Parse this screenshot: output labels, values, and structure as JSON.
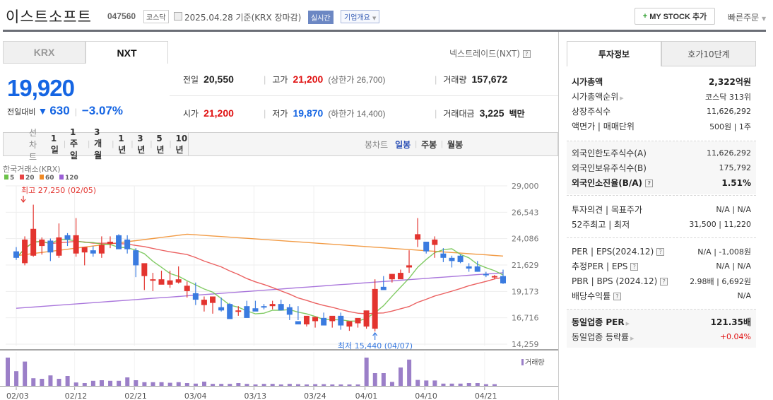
{
  "header": {
    "title": "이스트소프트",
    "code": "047560",
    "market": "코스닥",
    "date_text": "2025.04.28 기준(KRX 장마감)",
    "realtime_label": "실시간",
    "company_label": "기업개요",
    "mystock_label": "MY STOCK 추가",
    "quick_order_label": "빠른주문"
  },
  "exchange_tabs": [
    {
      "label": "KRX",
      "active": false
    },
    {
      "label": "NXT",
      "active": true
    }
  ],
  "nxt_label": "넥스트레이드(NXT)",
  "price": {
    "current": "19,920",
    "change_label": "전일대비",
    "change": "630",
    "change_pct": "−3.07%",
    "color": "#1565e3"
  },
  "stats": {
    "prev_close": {
      "label": "전일",
      "value": "20,550"
    },
    "high": {
      "label": "고가",
      "value": "21,200",
      "sub": "(상한가 26,700)"
    },
    "volume": {
      "label": "거래량",
      "value": "157,672"
    },
    "open": {
      "label": "시가",
      "value": "21,200"
    },
    "low": {
      "label": "저가",
      "value": "19,870",
      "sub": "(하한가 14,400)"
    },
    "amount": {
      "label": "거래대금",
      "value": "3,225",
      "unit": "백만"
    }
  },
  "chart_tabs": {
    "line_label": "선차트",
    "line": [
      "1일",
      "1주일",
      "3개월",
      "1년",
      "3년",
      "5년",
      "10년"
    ],
    "candle_label": "봉차트",
    "candle": [
      "일봉",
      "주봉",
      "월봉"
    ],
    "candle_active": "일봉"
  },
  "chart_data": {
    "type": "candlestick",
    "title": "한국거래소(KRX)",
    "legend": [
      {
        "label": "5",
        "color": "#6cc24a"
      },
      {
        "label": "20",
        "color": "#e84545"
      },
      {
        "label": "60",
        "color": "#f08a24"
      },
      {
        "label": "120",
        "color": "#9b5fd6"
      }
    ],
    "y_ticks": [
      "29,000",
      "26,543",
      "24,086",
      "21,629",
      "19,173",
      "16,716",
      "14,259"
    ],
    "ylim": [
      14259,
      29000
    ],
    "x_ticks": [
      "02/03",
      "02/12",
      "02/21",
      "03/04",
      "03/13",
      "03/24",
      "04/01",
      "04/10",
      "04/21"
    ],
    "high_annotation": "최고 27,250 (02/05)",
    "low_annotation": "최저 15,440 (04/07)",
    "volume_label": "거래량",
    "candles": [
      [
        22900,
        23300,
        22100,
        22300
      ],
      [
        21800,
        24300,
        21600,
        24000
      ],
      [
        22500,
        27250,
        22400,
        25000
      ],
      [
        23400,
        24200,
        22600,
        24000
      ],
      [
        23900,
        24100,
        22000,
        22800
      ],
      [
        22500,
        25500,
        22300,
        24200
      ],
      [
        24400,
        24600,
        23400,
        24000
      ],
      [
        22700,
        26000,
        22400,
        24400
      ],
      [
        22800,
        23300,
        21600,
        23300
      ],
      [
        23000,
        23400,
        22400,
        22700
      ],
      [
        22700,
        24300,
        22300,
        23500
      ],
      [
        23600,
        24300,
        23200,
        23800
      ],
      [
        24400,
        24500,
        23200,
        23100
      ],
      [
        24000,
        24400,
        22700,
        23100
      ],
      [
        23000,
        23200,
        20500,
        21600
      ],
      [
        20600,
        21600,
        19300,
        21800
      ],
      [
        20200,
        20900,
        19200,
        20300
      ],
      [
        19800,
        21100,
        19900,
        20300
      ],
      [
        19800,
        21100,
        19500,
        20200
      ],
      [
        20000,
        21500,
        19900,
        20300
      ],
      [
        19200,
        20100,
        18600,
        19700
      ],
      [
        19000,
        20000,
        17900,
        18400
      ],
      [
        17900,
        18700,
        17300,
        18400
      ],
      [
        18100,
        18400,
        17100,
        18700
      ],
      [
        17700,
        18600,
        17300,
        17400
      ],
      [
        18000,
        18100,
        17200,
        16600
      ],
      [
        17400,
        17800,
        16900,
        17400
      ],
      [
        17800,
        18300,
        16900,
        16700
      ],
      [
        17600,
        18300,
        17400,
        17300
      ],
      [
        17800,
        18000,
        17500,
        17700
      ],
      [
        17800,
        18300,
        17500,
        18000
      ],
      [
        18000,
        18400,
        17900,
        17400
      ],
      [
        17700,
        18000,
        16500,
        17000
      ],
      [
        16400,
        17800,
        16500,
        16100
      ],
      [
        16100,
        16300,
        15900,
        16900
      ],
      [
        16400,
        16700,
        15800,
        16800
      ],
      [
        16700,
        17200,
        16400,
        16000
      ],
      [
        16400,
        16400,
        15800,
        16900
      ],
      [
        16900,
        17200,
        15600,
        16000
      ],
      [
        15900,
        16300,
        15500,
        16400
      ],
      [
        16200,
        16600,
        15800,
        16700
      ],
      [
        15900,
        16300,
        15700,
        17400
      ],
      [
        15700,
        20300,
        15440,
        19400
      ],
      [
        19600,
        20600,
        19500,
        19300
      ],
      [
        20300,
        20800,
        20000,
        20800
      ],
      [
        20300,
        21200,
        20500,
        20900
      ],
      [
        21400,
        23000,
        20900,
        21600
      ],
      [
        24000,
        26000,
        23300,
        24500
      ],
      [
        23800,
        23800,
        22700,
        22900
      ],
      [
        23500,
        24300,
        22300,
        24000
      ],
      [
        22700,
        23200,
        21900,
        22300
      ],
      [
        22300,
        22500,
        21400,
        22000
      ],
      [
        22500,
        22600,
        21800,
        21900
      ],
      [
        21500,
        21800,
        21000,
        21300
      ],
      [
        21500,
        22000,
        21000,
        21000
      ],
      [
        20800,
        21000,
        20500,
        20700
      ],
      [
        20500,
        20700,
        20300,
        20600
      ],
      [
        20600,
        21200,
        19870,
        19920
      ]
    ],
    "volumes": [
      100,
      52,
      86,
      27,
      25,
      37,
      25,
      35,
      12,
      10,
      18,
      20,
      18,
      18,
      30,
      20,
      13,
      13,
      13,
      11,
      13,
      10,
      8,
      15,
      7,
      7,
      7,
      10,
      7,
      5,
      7,
      7,
      5,
      7,
      6,
      5,
      6,
      6,
      5,
      5,
      5,
      5,
      100,
      45,
      45,
      14,
      65,
      93,
      21,
      19,
      19,
      8,
      8,
      8,
      10,
      10,
      6,
      6
    ]
  },
  "info_tabs": [
    {
      "label": "투자정보",
      "active": true
    },
    {
      "label": "호가10단계",
      "active": false
    }
  ],
  "info": {
    "market_cap": {
      "label": "시가총액",
      "value": "2,322억원"
    },
    "market_cap_rank": {
      "label": "시가총액순위",
      "value": "코스닥 313위"
    },
    "listed_shares": {
      "label": "상장주식수",
      "value": "11,626,292"
    },
    "par_unit": {
      "label": "액면가 | 매매단위",
      "value": "500원 | 1주"
    },
    "foreign_limit": {
      "label": "외국인한도주식수(A)",
      "value": "11,626,292"
    },
    "foreign_hold": {
      "label": "외국인보유주식수(B)",
      "value": "175,792"
    },
    "foreign_ratio": {
      "label": "외국인소진율(B/A)",
      "value": "1.51%"
    },
    "opinion_target": {
      "label": "투자의견 | 목표주가",
      "value": "N/A | N/A"
    },
    "week52": {
      "label": "52주최고 | 최저",
      "value": "31,500 | 11,220"
    },
    "per_eps": {
      "label": "PER | EPS(2024.12)",
      "value": "N/A | -1,008원"
    },
    "est_per_eps": {
      "label": "추정PER | EPS",
      "value": "N/A | N/A"
    },
    "pbr_bps": {
      "label": "PBR | BPS (2024.12)",
      "value": "2.98배 | 6,692원"
    },
    "dividend": {
      "label": "배당수익률",
      "value": "N/A"
    },
    "sector_per": {
      "label": "동일업종 PER",
      "value": "121.35배"
    },
    "sector_change": {
      "label": "동일업종 등락률",
      "value": "+0.04%"
    }
  }
}
